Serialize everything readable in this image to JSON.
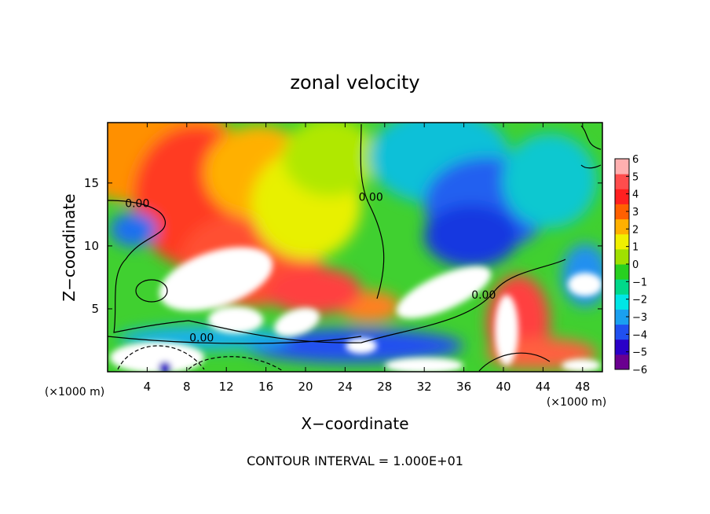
{
  "chart_data": {
    "type": "heatmap",
    "title": "zonal velocity",
    "xlabel": "X−coordinate",
    "ylabel": "Z−coordinate",
    "x_unit_left": "(×1000 m)",
    "x_unit_right": "(×1000 m)",
    "footer": "CONTOUR INTERVAL = 1.000E+01",
    "xlim": [
      0,
      50
    ],
    "ylim": [
      0,
      19.8
    ],
    "x_ticks": [
      4,
      8,
      12,
      16,
      20,
      24,
      28,
      32,
      36,
      40,
      44,
      48
    ],
    "y_ticks": [
      5,
      10,
      15
    ],
    "colorbar": {
      "range": [
        -6,
        6
      ],
      "ticks": [
        6,
        5,
        4,
        3,
        2,
        1,
        0,
        -1,
        -2,
        -3,
        -4,
        -5,
        -6
      ],
      "colors": [
        "#6a0090",
        "#2a00c8",
        "#2050f0",
        "#1aa0f0",
        "#00e6e6",
        "#00d88a",
        "#28d020",
        "#a0e000",
        "#f0f000",
        "#ffb000",
        "#ff6000",
        "#ff2020",
        "#ff4d4d",
        "#ffb0b0"
      ]
    },
    "contour_labels": [
      {
        "x": 3.0,
        "y": 13.1,
        "text": "0.00"
      },
      {
        "x": 9.5,
        "y": 2.4,
        "text": "0.00"
      },
      {
        "x": 26.6,
        "y": 13.6,
        "text": "0.00"
      },
      {
        "x": 38.0,
        "y": 5.8,
        "text": "0.00"
      }
    ]
  }
}
